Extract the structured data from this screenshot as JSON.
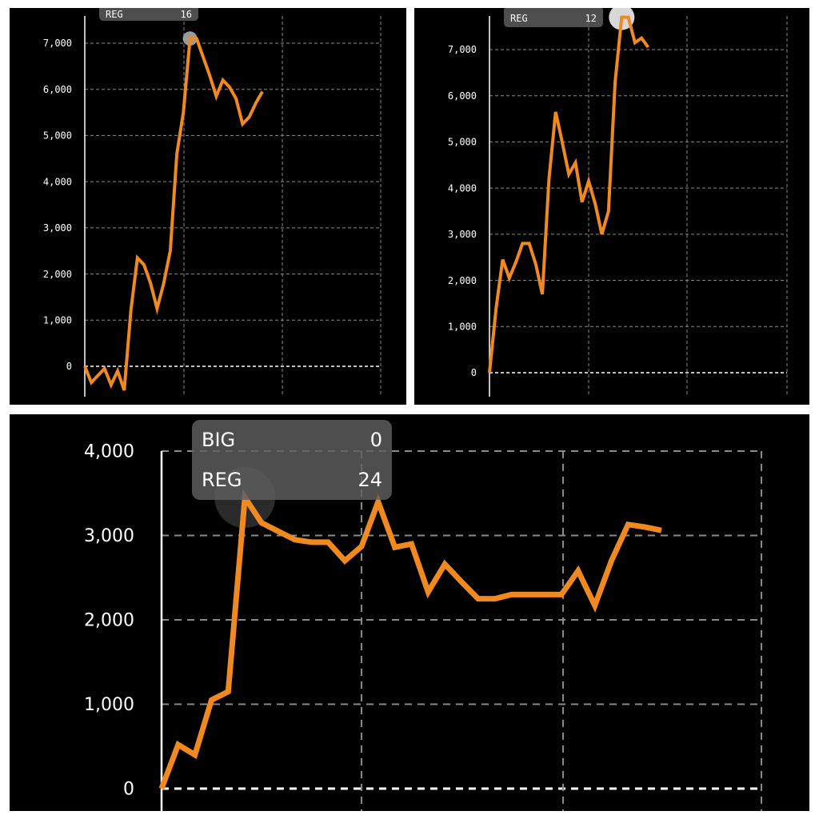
{
  "colors": {
    "background": "#000000",
    "line": "#f0891f",
    "grid": "#8a8a8a",
    "axis": "#ffffff",
    "tick_text": "#ffffff"
  },
  "chart_data": [
    {
      "type": "line",
      "yticks": [
        "0",
        "1,000",
        "2,000",
        "3,000",
        "4,000",
        "5,000",
        "6,000",
        "7,000"
      ],
      "ylim": [
        -650,
        8000
      ],
      "x": [
        0,
        1,
        2,
        3,
        4,
        5,
        6,
        7,
        8,
        9,
        10,
        11,
        12,
        13,
        14,
        15,
        16,
        17,
        18,
        19,
        20,
        21,
        22,
        23,
        24,
        25,
        26,
        27,
        28,
        29,
        30,
        31,
        32,
        33,
        34,
        35,
        36,
        37,
        38,
        39,
        40,
        41,
        42,
        43,
        44,
        45
      ],
      "values": [
        0,
        -350,
        -200,
        -50,
        -400,
        -100,
        -520,
        1200,
        2350,
        2200,
        1800,
        1250,
        1800,
        2500,
        4600,
        5500,
        7100,
        7100,
        6700,
        6300,
        5850,
        6200,
        6050,
        5800,
        5250,
        5400,
        5700,
        5950,
        null,
        null,
        null,
        null,
        null,
        null,
        null,
        null,
        null,
        null,
        null,
        null,
        null,
        null,
        null,
        null,
        null,
        null
      ],
      "highlight_index": 16,
      "grid": true,
      "tooltip": {
        "rows": [
          {
            "label": "REG",
            "value": "16"
          }
        ]
      }
    },
    {
      "type": "line",
      "yticks": [
        "0",
        "1,000",
        "2,000",
        "3,000",
        "4,000",
        "5,000",
        "6,000",
        "7,000"
      ],
      "ylim": [
        -650,
        8000
      ],
      "x": [
        0,
        1,
        2,
        3,
        4,
        5,
        6,
        7,
        8,
        9,
        10,
        11,
        12,
        13,
        14,
        15,
        16,
        17,
        18,
        19,
        20,
        21,
        22,
        23,
        24,
        25,
        26,
        27,
        28,
        29,
        30,
        31,
        32,
        33,
        34,
        35,
        36,
        37,
        38,
        39,
        40,
        41,
        42,
        43,
        44,
        45
      ],
      "values": [
        0,
        1400,
        2450,
        2050,
        2400,
        2800,
        2800,
        2350,
        1700,
        4200,
        5650,
        5000,
        4300,
        4550,
        3700,
        4150,
        3650,
        3000,
        3500,
        6300,
        7700,
        7700,
        7150,
        7250,
        7050,
        null,
        null,
        null,
        null,
        null,
        null,
        null,
        null,
        null,
        null,
        null,
        null,
        null,
        null,
        null,
        null,
        null,
        null,
        null,
        null,
        null
      ],
      "highlight_index": 20,
      "grid": true,
      "tooltip": {
        "rows": [
          {
            "label": "REG",
            "value": "12"
          }
        ]
      }
    },
    {
      "type": "line",
      "yticks": [
        "0",
        "1,000",
        "2,000",
        "3,000",
        "4,000"
      ],
      "ylim": [
        0,
        4200
      ],
      "x": [
        0,
        1,
        2,
        3,
        4,
        5,
        6,
        7,
        8,
        9,
        10,
        11,
        12,
        13,
        14,
        15,
        16,
        17,
        18,
        19,
        20,
        21,
        22,
        23,
        24,
        25,
        26,
        27,
        28,
        29,
        30,
        31,
        32,
        33,
        34,
        35,
        36
      ],
      "values": [
        0,
        520,
        400,
        1050,
        1150,
        3450,
        3150,
        3050,
        2950,
        2920,
        2920,
        2700,
        2870,
        3400,
        2860,
        2900,
        2330,
        2660,
        2450,
        2250,
        2250,
        2300,
        2300,
        2300,
        2300,
        2580,
        2170,
        2700,
        3130,
        3100,
        3060,
        null,
        null,
        null,
        null,
        null,
        null
      ],
      "highlight_index": 5,
      "grid": true,
      "tooltip": {
        "rows": [
          {
            "label": "BIG",
            "value": "0"
          },
          {
            "label": "REG",
            "value": "24"
          }
        ]
      }
    }
  ]
}
